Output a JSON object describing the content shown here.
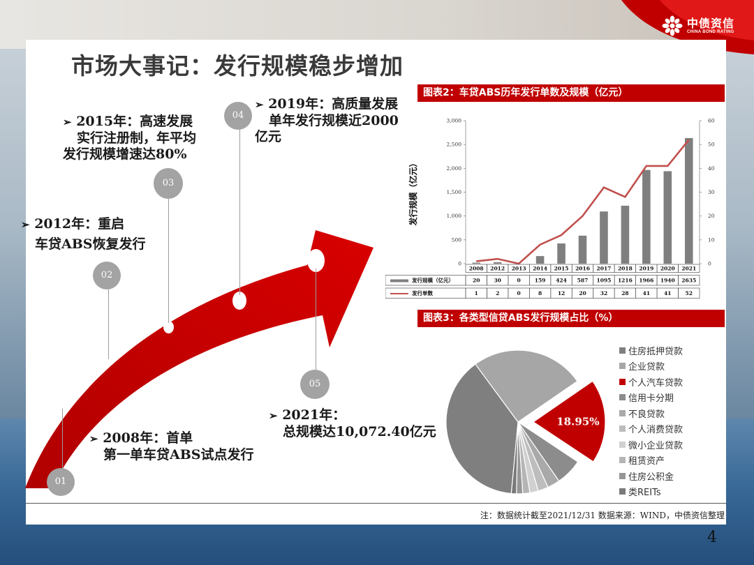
{
  "header": {
    "title": "市场大事记：发行规模稳步增加",
    "logo_cn": "中债资信",
    "logo_en": "CHINA BOND RATING"
  },
  "timeline": [
    {
      "num": "01",
      "lines": [
        "2008年：首单",
        "第一单车贷ABS试点发行"
      ]
    },
    {
      "num": "02",
      "lines": [
        "2012年：重启",
        "车贷ABS恢复发行"
      ]
    },
    {
      "num": "03",
      "lines": [
        "2015年：高速发展",
        "实行注册制，年平均",
        "发行规模增速达80%"
      ]
    },
    {
      "num": "04",
      "lines": [
        "2019年：高质量发展",
        "单年发行规模近2000",
        "亿元"
      ]
    },
    {
      "num": "05",
      "lines": [
        "2021年：",
        "总规模达10,072.40亿元"
      ]
    }
  ],
  "fig2": {
    "title": "图表2：车贷ABS历年发行单数及规模（亿元）",
    "ylabel": "发行规模（亿元）",
    "left_ticks": [
      "0",
      "500",
      "1,000",
      "1,500",
      "2,000",
      "2,500",
      "3,000"
    ],
    "right_ticks": [
      "0",
      "10",
      "20",
      "30",
      "40",
      "50",
      "60"
    ],
    "legend_bar": "发行规模（亿元）",
    "legend_line": "发行单数"
  },
  "chart_data": {
    "type": "bar",
    "categories": [
      "2008",
      "2012",
      "2013",
      "2014",
      "2015",
      "2016",
      "2017",
      "2018",
      "2019",
      "2020",
      "2021"
    ],
    "series": [
      {
        "name": "发行规模（亿元）",
        "type": "bar",
        "values": [
          20,
          30,
          0,
          159,
          424,
          587,
          1095,
          1216,
          1966,
          1940,
          2635
        ]
      },
      {
        "name": "发行单数",
        "type": "line",
        "axis": "right",
        "values": [
          1,
          2,
          0,
          8,
          12,
          20,
          32,
          28,
          41,
          41,
          52
        ]
      }
    ],
    "ylabel": "发行规模（亿元）",
    "ylim": [
      0,
      3000
    ],
    "y2lim": [
      0,
      60
    ],
    "colors": {
      "bar": "#7f7f7f",
      "line": "#c0504d"
    }
  },
  "fig3": {
    "title": "图表3：各类型信贷ABS发行规模占比（%）",
    "highlight_label": "18.95%",
    "legend": [
      {
        "name": "住房抵押贷款",
        "color": "#7f7f7f"
      },
      {
        "name": "企业贷款",
        "color": "#a6a6a6"
      },
      {
        "name": "个人汽车贷款",
        "color": "#c00000"
      },
      {
        "name": "信用卡分期",
        "color": "#8c8c8c"
      },
      {
        "name": "不良贷款",
        "color": "#a9a9a9"
      },
      {
        "name": "个人消费贷款",
        "color": "#bdbdbd"
      },
      {
        "name": "微小企业贷款",
        "color": "#d0d0d0"
      },
      {
        "name": "租赁资产",
        "color": "#b5b5b5"
      },
      {
        "name": "住房公积金",
        "color": "#969696"
      },
      {
        "name": "类REITs",
        "color": "#7a7a7a"
      }
    ]
  },
  "pie_data": {
    "type": "pie",
    "values": [
      38.4,
      25.5,
      18.95,
      6.0,
      2.8,
      2.3,
      1.9,
      1.6,
      1.4,
      1.15
    ]
  },
  "footer": {
    "note": "注：数据统计截至2021/12/31    数据来源：WIND，中债资信整理",
    "page": "4"
  }
}
